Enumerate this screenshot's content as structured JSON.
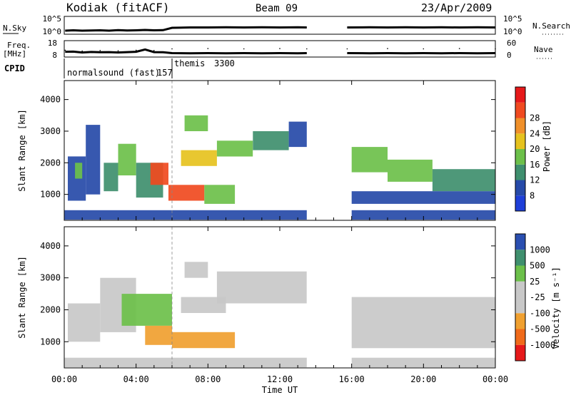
{
  "header": {
    "station": "Kodiak (fitACF)",
    "beam": "Beam 09",
    "date": "23/Apr/2009"
  },
  "chart_data": [
    {
      "type": "line",
      "panel": "noise",
      "left_label": "N.Sky",
      "right_label": "N.Search",
      "left_ticks": [
        "10^5",
        "10^0"
      ],
      "right_ticks": [
        "10^5",
        "10^0"
      ],
      "scale": "log",
      "sky_noise_log10": [
        [
          0.05,
          1.0
        ],
        [
          0.5,
          1.1
        ],
        [
          1.0,
          1.0
        ],
        [
          1.5,
          1.05
        ],
        [
          2.0,
          1.1
        ],
        [
          2.5,
          1.0
        ],
        [
          3.0,
          1.15
        ],
        [
          3.5,
          1.05
        ],
        [
          4.0,
          1.1
        ],
        [
          4.5,
          1.2
        ],
        [
          5.0,
          1.1
        ],
        [
          5.5,
          1.15
        ],
        [
          6.0,
          1.8
        ],
        [
          7.0,
          1.9
        ],
        [
          8.0,
          1.9
        ],
        [
          9.0,
          1.95
        ],
        [
          10.0,
          1.9
        ],
        [
          11.0,
          1.95
        ],
        [
          12.0,
          1.9
        ],
        [
          13.0,
          1.95
        ],
        [
          13.5,
          1.9
        ],
        [
          15.75,
          1.9
        ],
        [
          17.0,
          1.95
        ],
        [
          18.0,
          1.9
        ],
        [
          19.0,
          1.95
        ],
        [
          20.0,
          1.9
        ],
        [
          21.0,
          1.95
        ],
        [
          22.0,
          1.9
        ],
        [
          23.0,
          1.95
        ],
        [
          24.0,
          1.9
        ]
      ]
    },
    {
      "type": "line",
      "panel": "frequency",
      "left_label": "Freq.",
      "left_unit": "[MHz]",
      "right_label": "Nave",
      "left_ticks": [
        "18",
        "8"
      ],
      "right_ticks": [
        "60",
        "0"
      ],
      "freq_mhz": [
        [
          0.05,
          11.2
        ],
        [
          0.5,
          11.3
        ],
        [
          1.0,
          10.8
        ],
        [
          1.5,
          11.1
        ],
        [
          2.0,
          10.9
        ],
        [
          2.5,
          11.0
        ],
        [
          3.0,
          10.8
        ],
        [
          3.5,
          11.0
        ],
        [
          4.0,
          11.2
        ],
        [
          4.5,
          12.6
        ],
        [
          5.0,
          11.0
        ],
        [
          5.5,
          10.9
        ],
        [
          6.0,
          10.4
        ],
        [
          7.0,
          10.3
        ],
        [
          8.0,
          10.4
        ],
        [
          9.0,
          10.3
        ],
        [
          10.0,
          10.4
        ],
        [
          11.0,
          10.3
        ],
        [
          12.0,
          10.4
        ],
        [
          13.0,
          10.3
        ],
        [
          13.5,
          10.4
        ],
        [
          15.75,
          10.4
        ],
        [
          17.0,
          10.3
        ],
        [
          18.0,
          10.4
        ],
        [
          19.0,
          10.3
        ],
        [
          20.0,
          10.4
        ],
        [
          21.0,
          10.3
        ],
        [
          22.0,
          10.4
        ],
        [
          23.0,
          10.3
        ],
        [
          24.0,
          10.4
        ]
      ],
      "nave": [
        [
          0.05,
          25
        ],
        [
          1.0,
          22
        ],
        [
          2.0,
          24
        ],
        [
          3.0,
          23
        ],
        [
          4.0,
          25
        ],
        [
          5.0,
          24
        ],
        [
          6.0,
          30
        ],
        [
          8.0,
          31
        ],
        [
          10.0,
          30
        ],
        [
          12.0,
          31
        ],
        [
          13.5,
          30
        ],
        [
          15.75,
          30
        ],
        [
          18.0,
          31
        ],
        [
          20.0,
          30
        ],
        [
          22.0,
          31
        ],
        [
          24.0,
          30
        ]
      ]
    },
    {
      "type": "table",
      "panel": "cpid",
      "label": "CPID",
      "segments": [
        {
          "start": 0.0,
          "end": 6.0,
          "name": "normalsound (fast)",
          "id": "157"
        },
        {
          "start": 6.0,
          "end": 13.5,
          "name": "themis",
          "id": "3300"
        }
      ]
    },
    {
      "type": "heatmap",
      "panel": "power",
      "ylabel": "Slant Range [km]",
      "yticks": [
        1000,
        2000,
        3000,
        4000
      ],
      "ylim": [
        180,
        4600
      ],
      "colorbar_label": "Power [dB]",
      "colorbar_ticks": [
        8,
        12,
        16,
        20,
        24,
        28
      ],
      "colorbar_colors": [
        "#1e3fd8",
        "#264aa8",
        "#3f8f6e",
        "#6cc04a",
        "#e6c21e",
        "#f0902a",
        "#f04a20",
        "#e6191a"
      ],
      "regions": [
        {
          "t0": 0.2,
          "t1": 1.2,
          "r0": 800,
          "r1": 2200,
          "dB": 10
        },
        {
          "t0": 0.6,
          "t1": 1.0,
          "r0": 1500,
          "r1": 2000,
          "dB": 18
        },
        {
          "t0": 1.2,
          "t1": 2.0,
          "r0": 1000,
          "r1": 3200,
          "dB": 8
        },
        {
          "t0": 2.2,
          "t1": 3.0,
          "r0": 1100,
          "r1": 2000,
          "dB": 14
        },
        {
          "t0": 3.0,
          "t1": 4.0,
          "r0": 1600,
          "r1": 2600,
          "dB": 16
        },
        {
          "t0": 4.0,
          "t1": 5.5,
          "r0": 900,
          "r1": 2000,
          "dB": 12
        },
        {
          "t0": 4.8,
          "t1": 5.8,
          "r0": 1300,
          "r1": 2000,
          "dB": 28
        },
        {
          "t0": 5.8,
          "t1": 7.8,
          "r0": 800,
          "r1": 1300,
          "dB": 30
        },
        {
          "t0": 7.8,
          "t1": 9.5,
          "r0": 700,
          "r1": 1300,
          "dB": 16
        },
        {
          "t0": 6.5,
          "t1": 8.5,
          "r0": 1900,
          "r1": 2400,
          "dB": 22
        },
        {
          "t0": 8.5,
          "t1": 10.5,
          "r0": 2200,
          "r1": 2700,
          "dB": 16
        },
        {
          "t0": 10.5,
          "t1": 12.5,
          "r0": 2400,
          "r1": 3000,
          "dB": 12
        },
        {
          "t0": 12.5,
          "t1": 13.5,
          "r0": 2500,
          "r1": 3300,
          "dB": 9
        },
        {
          "t0": 6.7,
          "t1": 8.0,
          "r0": 3000,
          "r1": 3500,
          "dB": 18
        },
        {
          "t0": 16.0,
          "t1": 18.0,
          "r0": 1700,
          "r1": 2500,
          "dB": 18
        },
        {
          "t0": 18.0,
          "t1": 20.5,
          "r0": 1400,
          "r1": 2100,
          "dB": 16
        },
        {
          "t0": 20.5,
          "t1": 24.0,
          "r0": 1100,
          "r1": 1800,
          "dB": 14
        },
        {
          "t0": 16.0,
          "t1": 24.0,
          "r0": 700,
          "r1": 1100,
          "dB": 10
        },
        {
          "t0": 16.0,
          "t1": 24.0,
          "r0": 200,
          "r1": 500,
          "dB": 9
        },
        {
          "t0": 0.0,
          "t1": 13.5,
          "r0": 200,
          "r1": 500,
          "dB": 8
        }
      ]
    },
    {
      "type": "heatmap",
      "panel": "velocity",
      "ylabel": "Slant Range [km]",
      "yticks": [
        1000,
        2000,
        3000,
        4000
      ],
      "ylim": [
        180,
        4600
      ],
      "colorbar_label": "Velocity [m s⁻¹]",
      "colorbar_ticks": [
        1000,
        500,
        25,
        -25,
        -100,
        -500,
        -1000
      ],
      "colorbar_colors": [
        "#2a4fb0",
        "#3f8f6e",
        "#6cc04a",
        "#c8c8c8",
        "#c8c8c8",
        "#f0a030",
        "#f06a1a",
        "#e6191a"
      ],
      "regions": [
        {
          "t0": 0.2,
          "t1": 2.0,
          "r0": 1000,
          "r1": 2200,
          "v": 0
        },
        {
          "t0": 2.0,
          "t1": 4.0,
          "r0": 1300,
          "r1": 3000,
          "v": 0
        },
        {
          "t0": 3.2,
          "t1": 6.0,
          "r0": 1500,
          "r1": 2500,
          "v": 400
        },
        {
          "t0": 4.5,
          "t1": 6.0,
          "r0": 900,
          "r1": 1500,
          "v": -150
        },
        {
          "t0": 6.0,
          "t1": 9.5,
          "r0": 800,
          "r1": 1300,
          "v": -120
        },
        {
          "t0": 6.5,
          "t1": 9.0,
          "r0": 1900,
          "r1": 2400,
          "v": 0
        },
        {
          "t0": 8.5,
          "t1": 13.5,
          "r0": 2200,
          "r1": 3200,
          "v": 0
        },
        {
          "t0": 6.7,
          "t1": 8.0,
          "r0": 3000,
          "r1": 3500,
          "v": 0
        },
        {
          "t0": 16.0,
          "t1": 24.0,
          "r0": 800,
          "r1": 2400,
          "v": 0
        },
        {
          "t0": 16.0,
          "t1": 24.0,
          "r0": 200,
          "r1": 500,
          "v": -100
        },
        {
          "t0": 0.0,
          "t1": 13.5,
          "r0": 200,
          "r1": 500,
          "v": -80
        }
      ]
    }
  ],
  "xaxis": {
    "label": "Time UT",
    "ticks": [
      "00:00",
      "04:00",
      "08:00",
      "12:00",
      "16:00",
      "20:00",
      "00:00"
    ],
    "xlim_hours": [
      0,
      24
    ]
  }
}
